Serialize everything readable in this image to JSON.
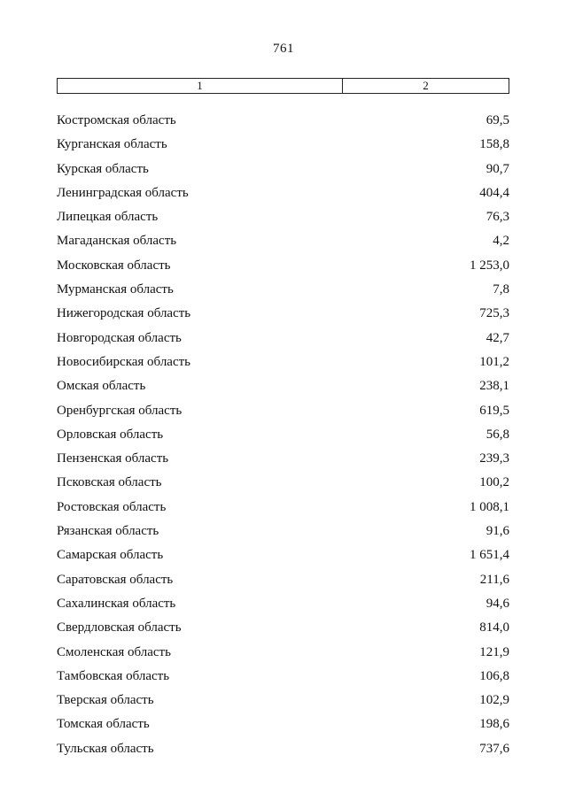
{
  "page": {
    "number": "761"
  },
  "table": {
    "header": {
      "col1": "1",
      "col2": "2"
    },
    "rows": [
      {
        "region": "Костромская область",
        "value": "69,5"
      },
      {
        "region": "Курганская область",
        "value": "158,8"
      },
      {
        "region": "Курская область",
        "value": "90,7"
      },
      {
        "region": "Ленинградская область",
        "value": "404,4"
      },
      {
        "region": "Липецкая область",
        "value": "76,3"
      },
      {
        "region": "Магаданская область",
        "value": "4,2"
      },
      {
        "region": "Московская область",
        "value": "1 253,0"
      },
      {
        "region": "Мурманская область",
        "value": "7,8"
      },
      {
        "region": "Нижегородская область",
        "value": "725,3"
      },
      {
        "region": "Новгородская область",
        "value": "42,7"
      },
      {
        "region": "Новосибирская область",
        "value": "101,2"
      },
      {
        "region": "Омская область",
        "value": "238,1"
      },
      {
        "region": "Оренбургская область",
        "value": "619,5"
      },
      {
        "region": "Орловская область",
        "value": "56,8"
      },
      {
        "region": "Пензенская область",
        "value": "239,3"
      },
      {
        "region": "Псковская область",
        "value": "100,2"
      },
      {
        "region": "Ростовская область",
        "value": "1 008,1"
      },
      {
        "region": "Рязанская область",
        "value": "91,6"
      },
      {
        "region": "Самарская область",
        "value": "1 651,4"
      },
      {
        "region": "Саратовская область",
        "value": "211,6"
      },
      {
        "region": "Сахалинская область",
        "value": "94,6"
      },
      {
        "region": "Свердловская область",
        "value": "814,0"
      },
      {
        "region": "Смоленская область",
        "value": "121,9"
      },
      {
        "region": "Тамбовская область",
        "value": "106,8"
      },
      {
        "region": "Тверская область",
        "value": "102,9"
      },
      {
        "region": "Томская область",
        "value": "198,6"
      },
      {
        "region": "Тульская область",
        "value": "737,6"
      }
    ]
  }
}
